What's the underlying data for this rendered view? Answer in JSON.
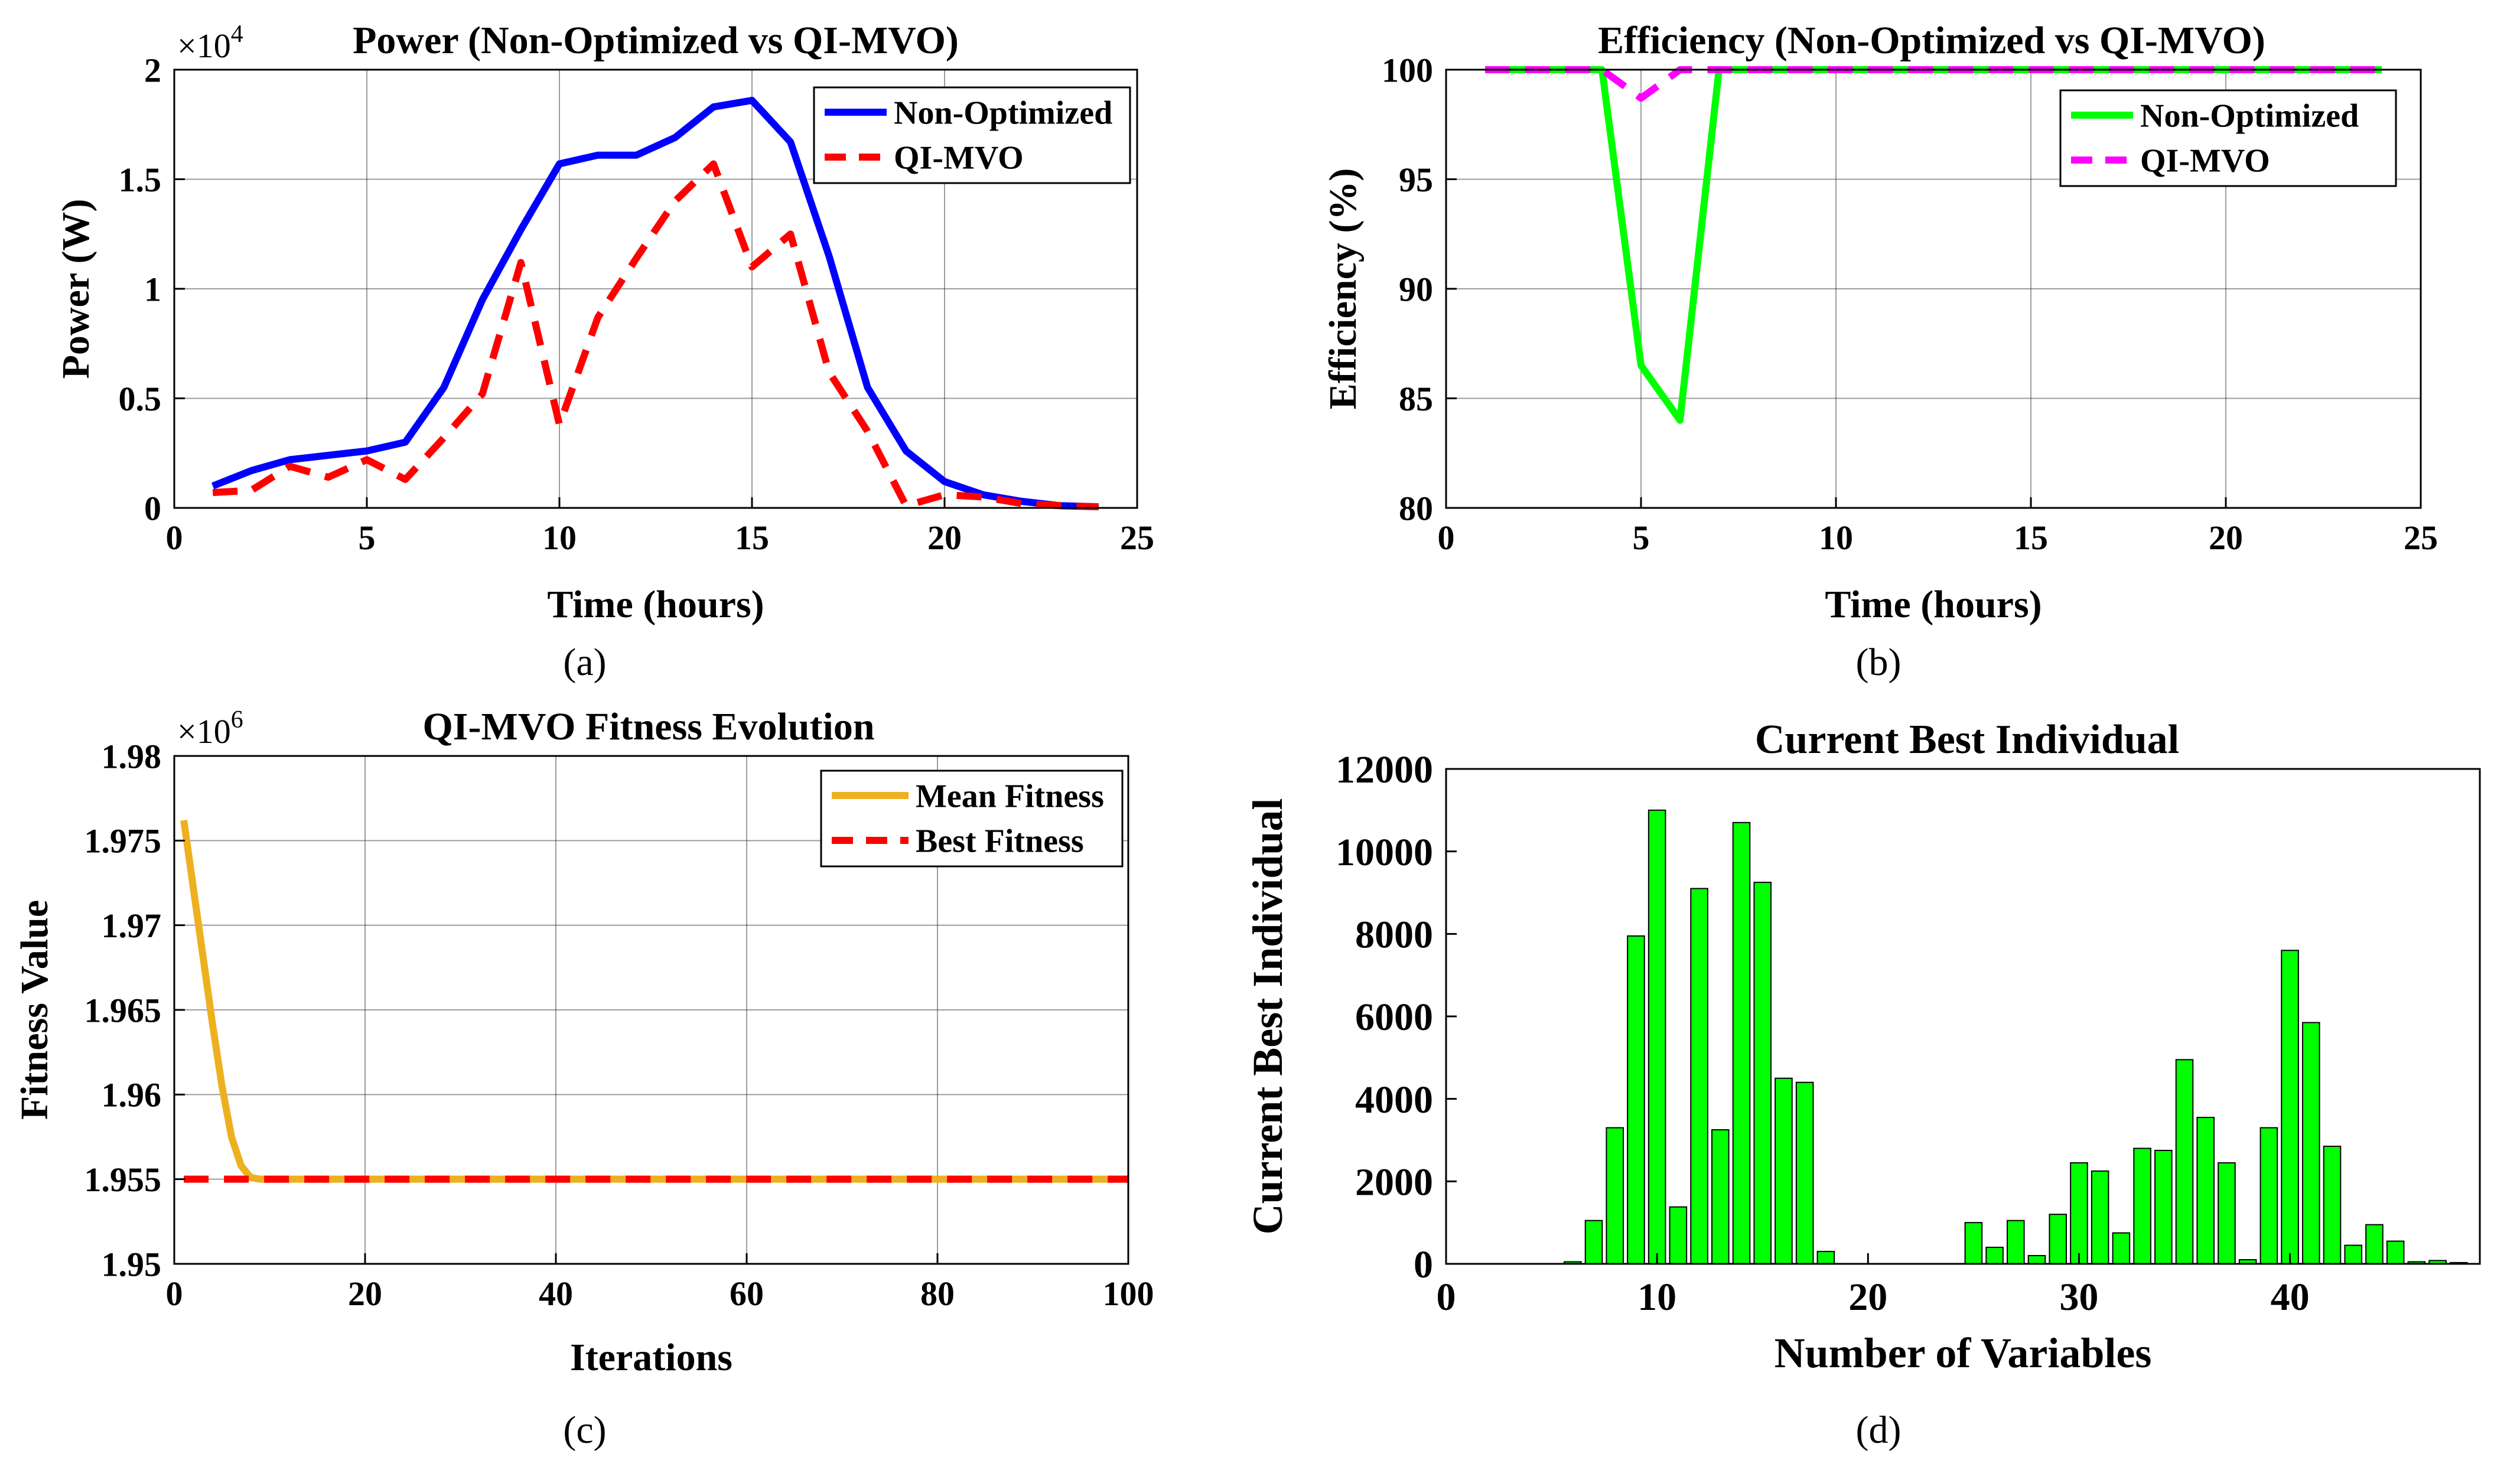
{
  "colors": {
    "blue": "#0000ff",
    "red": "#ff0000",
    "green": "#00ff00",
    "magenta": "#ff00ff",
    "orange": "#edb120",
    "bar_fill": "#00ff00",
    "grid": "#262626"
  },
  "panel_labels": [
    "(a)",
    "(b)",
    "(c)",
    "(d)"
  ],
  "chart_data": [
    {
      "id": "a",
      "type": "line",
      "title": "Power (Non-Optimized vs QI-MVO)",
      "xlabel": "Time (hours)",
      "ylabel": "Power (W)",
      "exponent_label": "×10",
      "exponent_power": "4",
      "xlim": [
        0,
        25
      ],
      "ylim": [
        0,
        2
      ],
      "xticks": [
        0,
        5,
        10,
        15,
        20,
        25
      ],
      "xtick_labels": [
        "0",
        "5",
        "10",
        "15",
        "20",
        "25"
      ],
      "yticks": [
        0,
        0.5,
        1,
        1.5,
        2
      ],
      "ytick_labels": [
        "0",
        "0.5",
        "1",
        "1.5",
        "2"
      ],
      "grid": true,
      "legend_position": "top-right",
      "x": [
        1,
        2,
        3,
        4,
        5,
        6,
        7,
        8,
        9,
        10,
        11,
        12,
        13,
        14,
        15,
        16,
        17,
        18,
        19,
        20,
        21,
        22,
        23,
        24
      ],
      "series": [
        {
          "name": "Non-Optimized",
          "color": "#0000ff",
          "dash": "solid",
          "values": [
            0.1,
            0.17,
            0.22,
            0.24,
            0.26,
            0.3,
            0.55,
            0.95,
            1.27,
            1.57,
            1.61,
            1.61,
            1.69,
            1.83,
            1.86,
            1.67,
            1.15,
            0.55,
            0.26,
            0.12,
            0.06,
            0.03,
            0.01,
            0.005
          ]
        },
        {
          "name": "QI-MVO",
          "color": "#ff0000",
          "dash": "dashed",
          "values": [
            0.07,
            0.08,
            0.19,
            0.14,
            0.22,
            0.13,
            0.32,
            0.52,
            1.12,
            0.38,
            0.87,
            1.14,
            1.4,
            1.57,
            1.1,
            1.25,
            0.62,
            0.35,
            0.01,
            0.06,
            0.05,
            0.02,
            0.01,
            0.005
          ]
        }
      ]
    },
    {
      "id": "b",
      "type": "line",
      "title": "Efficiency (Non-Optimized vs QI-MVO)",
      "xlabel": "Time (hours)",
      "ylabel": "Efficiency (%)",
      "xlim": [
        0,
        25
      ],
      "ylim": [
        80,
        100
      ],
      "xticks": [
        0,
        5,
        10,
        15,
        20,
        25
      ],
      "xtick_labels": [
        "0",
        "5",
        "10",
        "15",
        "20",
        "25"
      ],
      "yticks": [
        80,
        85,
        90,
        95,
        100
      ],
      "ytick_labels": [
        "80",
        "85",
        "90",
        "95",
        "100"
      ],
      "grid": true,
      "legend_position": "top-right",
      "x": [
        1,
        2,
        3,
        4,
        5,
        6,
        7,
        8,
        9,
        10,
        11,
        12,
        13,
        14,
        15,
        16,
        17,
        18,
        19,
        20,
        21,
        22,
        23,
        24
      ],
      "series": [
        {
          "name": "Non-Optimized",
          "color": "#00ff00",
          "dash": "solid",
          "values": [
            100,
            100,
            100,
            100,
            86.5,
            84,
            100,
            100,
            100,
            100,
            100,
            100,
            100,
            100,
            100,
            100,
            100,
            100,
            100,
            100,
            100,
            100,
            100,
            100
          ]
        },
        {
          "name": "QI-MVO",
          "color": "#ff00ff",
          "dash": "dashed",
          "values": [
            100,
            100,
            100,
            100,
            98.7,
            100,
            100,
            100,
            100,
            100,
            100,
            100,
            100,
            100,
            100,
            100,
            100,
            100,
            100,
            100,
            100,
            100,
            100,
            100
          ]
        }
      ]
    },
    {
      "id": "c",
      "type": "line",
      "title": "QI-MVO Fitness Evolution",
      "xlabel": "Iterations",
      "ylabel": "Fitness Value",
      "exponent_label": "×10",
      "exponent_power": "6",
      "xlim": [
        0,
        100
      ],
      "ylim": [
        1.95,
        1.98
      ],
      "xticks": [
        0,
        20,
        40,
        60,
        80,
        100
      ],
      "xtick_labels": [
        "0",
        "20",
        "40",
        "60",
        "80",
        "100"
      ],
      "yticks": [
        1.95,
        1.955,
        1.96,
        1.965,
        1.97,
        1.975,
        1.98
      ],
      "ytick_labels": [
        "1.95",
        "1.955",
        "1.96",
        "1.965",
        "1.97",
        "1.975",
        "1.98"
      ],
      "grid": true,
      "legend_position": "top-right",
      "series": [
        {
          "name": "Mean Fitness",
          "color": "#edb120",
          "dash": "solid",
          "x": [
            1,
            2,
            3,
            4,
            5,
            6,
            7,
            8,
            9,
            10,
            100
          ],
          "values": [
            1.9762,
            1.9722,
            1.9682,
            1.9642,
            1.9605,
            1.9575,
            1.9558,
            1.9551,
            1.955,
            1.955,
            1.955
          ]
        },
        {
          "name": "Best Fitness",
          "color": "#ff0000",
          "dash": "dashed",
          "x": [
            1,
            100
          ],
          "values": [
            1.955,
            1.955
          ]
        }
      ]
    },
    {
      "id": "d",
      "type": "bar",
      "title": "Current Best Individual",
      "xlabel": "Number of Variables",
      "ylabel": "Current Best Individual",
      "xlim": [
        0,
        49
      ],
      "ylim": [
        0,
        12000
      ],
      "xticks": [
        0,
        10,
        20,
        30,
        40
      ],
      "xtick_labels": [
        "0",
        "10",
        "20",
        "30",
        "40"
      ],
      "yticks": [
        0,
        2000,
        4000,
        6000,
        8000,
        10000,
        12000
      ],
      "ytick_labels": [
        "0",
        "2000",
        "4000",
        "6000",
        "8000",
        "10000",
        "12000"
      ],
      "grid": false,
      "categories": [
        1,
        2,
        3,
        4,
        5,
        6,
        7,
        8,
        9,
        10,
        11,
        12,
        13,
        14,
        15,
        16,
        17,
        18,
        19,
        20,
        21,
        22,
        23,
        24,
        25,
        26,
        27,
        28,
        29,
        30,
        31,
        32,
        33,
        34,
        35,
        36,
        37,
        38,
        39,
        40,
        41,
        42,
        43,
        44,
        45,
        46,
        47,
        48
      ],
      "values": [
        0,
        0,
        0,
        0,
        0,
        50,
        1050,
        3300,
        7950,
        11000,
        1380,
        9100,
        3250,
        10700,
        9250,
        4500,
        4400,
        300,
        0,
        0,
        0,
        0,
        0,
        0,
        1000,
        400,
        1050,
        200,
        1200,
        2450,
        2250,
        750,
        2800,
        2750,
        4950,
        3550,
        2450,
        100,
        3300,
        7600,
        5850,
        2850,
        450,
        950,
        550,
        50,
        80,
        30
      ]
    }
  ]
}
